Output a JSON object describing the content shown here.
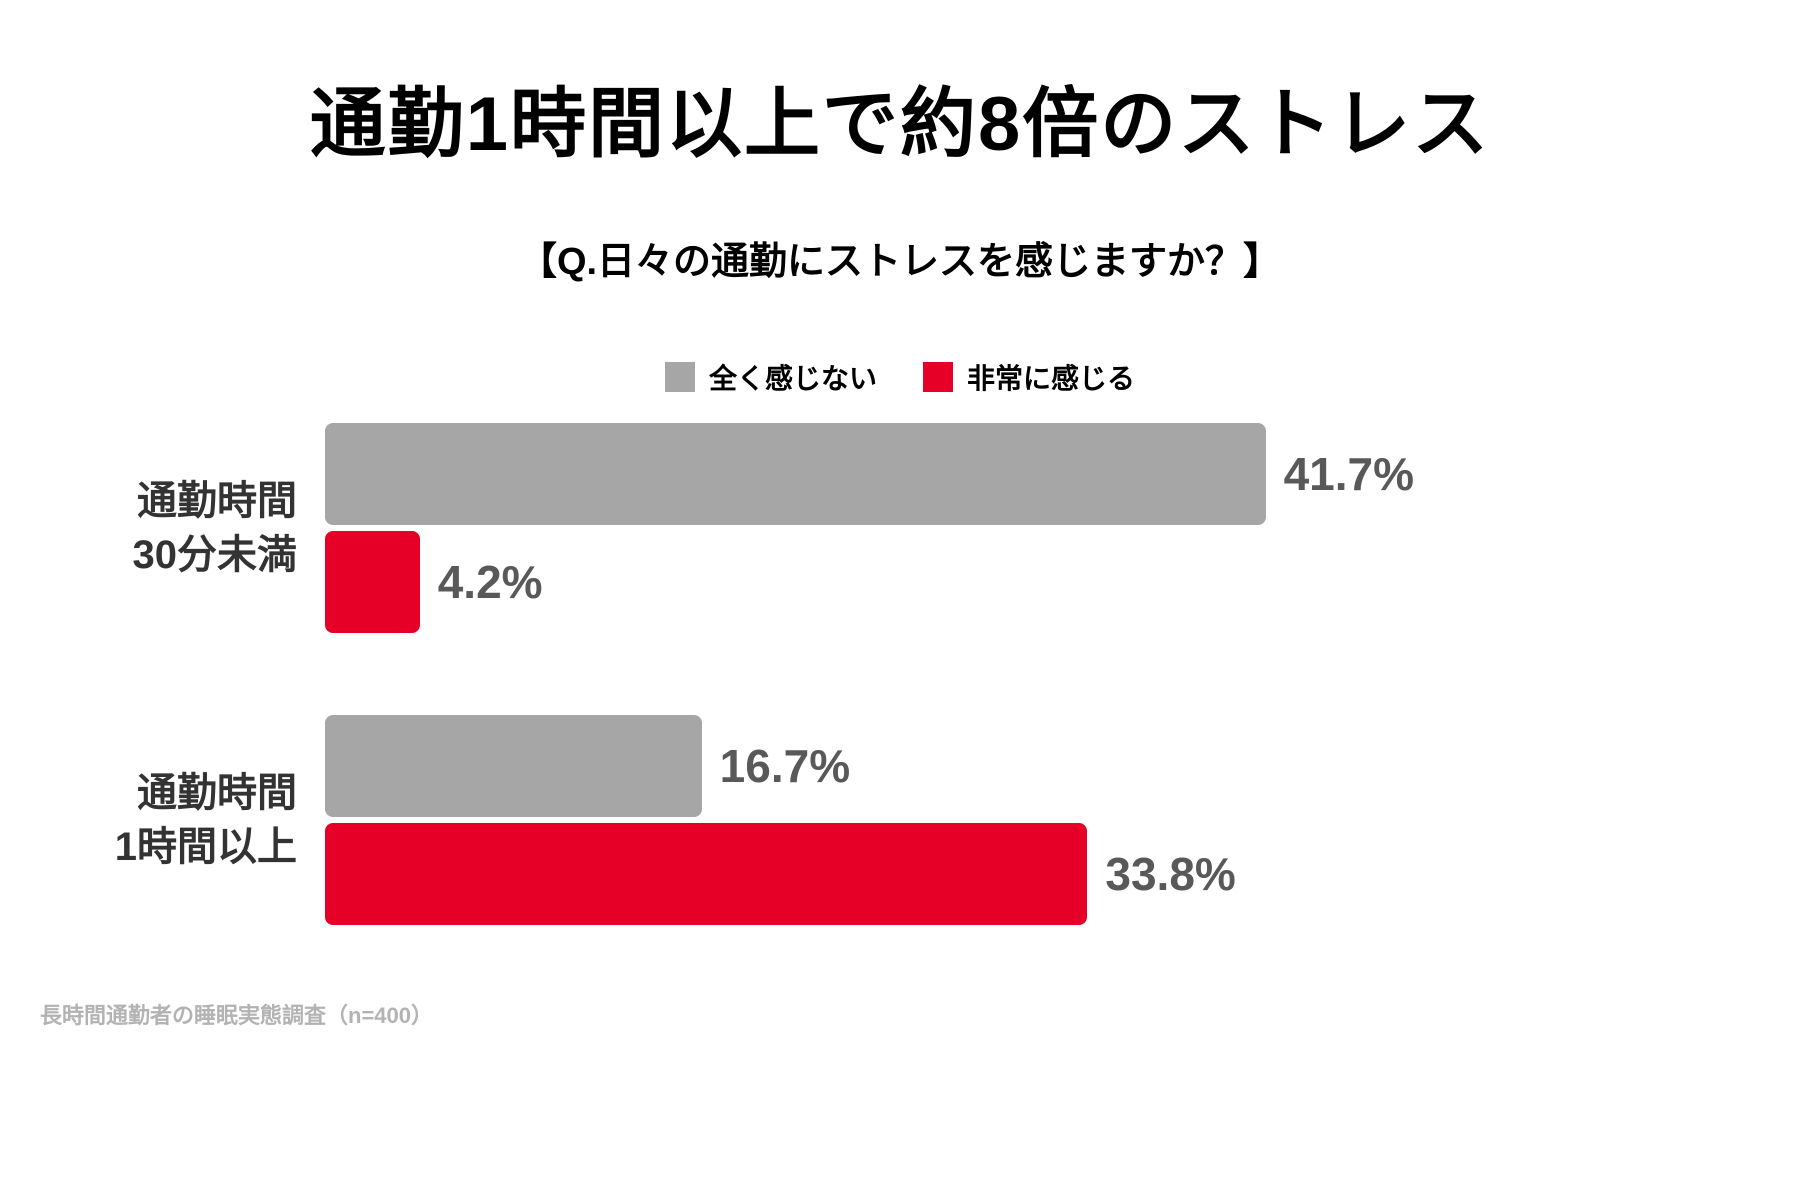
{
  "chart_data": {
    "type": "bar",
    "orientation": "horizontal",
    "title": "通勤1時間以上で約8倍のストレス",
    "subtitle": "【Q.日々の通勤にストレスを感じますか？】",
    "categories": [
      "通勤時間\n30分未満",
      "通勤時間\n1時間以上"
    ],
    "series": [
      {
        "name": "全く感じない",
        "color": "#a6a6a6",
        "values": [
          41.7,
          16.7
        ],
        "labels": [
          "41.7%",
          "16.7%"
        ]
      },
      {
        "name": "非常に感じる",
        "color": "#e60027",
        "values": [
          4.2,
          33.8
        ],
        "labels": [
          "4.2%",
          "33.8%"
        ]
      }
    ],
    "value_suffix": "%",
    "xlim": [
      0,
      45
    ],
    "grid": false,
    "legend_position": "top-center",
    "source": "長時間通勤者の睡眠実態調査（n=400）"
  },
  "colors": {
    "background": "#ffffff",
    "title_text": "#000000",
    "category_text": "#333333",
    "value_text": "#595959",
    "source_text": "#b3b3b3",
    "series_gray": "#a6a6a6",
    "series_red": "#e60027"
  }
}
